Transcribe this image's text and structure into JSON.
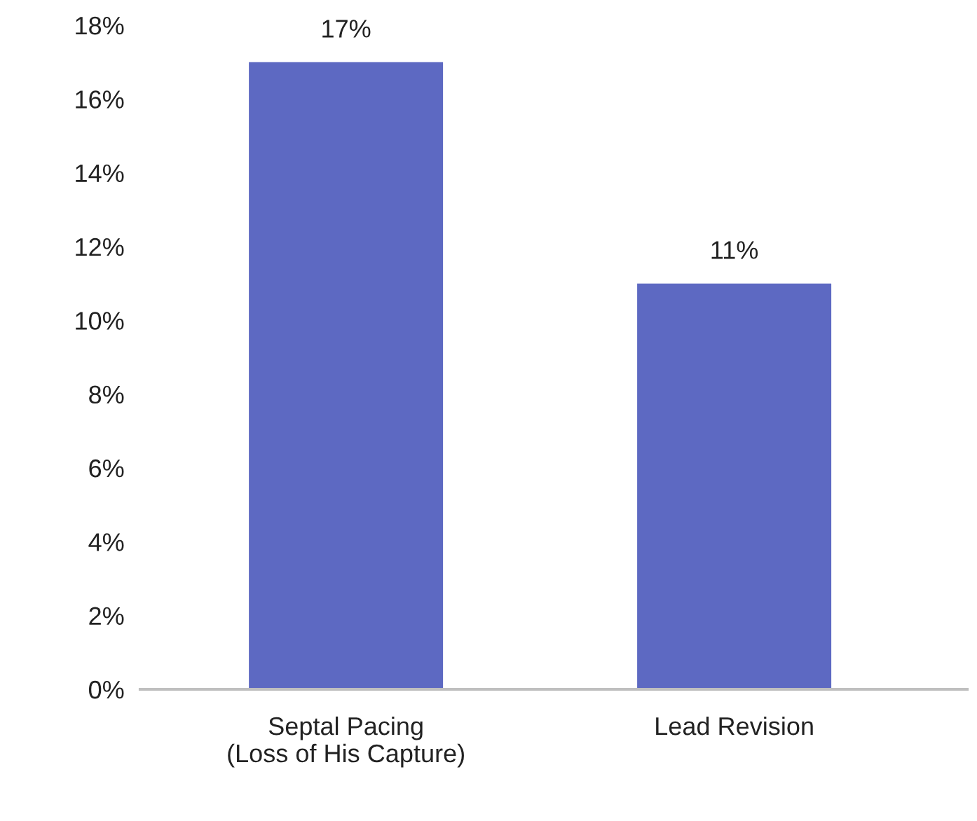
{
  "chart_data": {
    "type": "bar",
    "categories": [
      "Septal Pacing\n(Loss of His Capture)",
      "Lead Revision"
    ],
    "values": [
      17,
      11
    ],
    "value_labels": [
      "17%",
      "11%"
    ],
    "color": "#5d69c2",
    "ylim": [
      0,
      18
    ],
    "yticks": [
      {
        "value": 0,
        "label": "0%"
      },
      {
        "value": 2,
        "label": "2%"
      },
      {
        "value": 4,
        "label": "4%"
      },
      {
        "value": 6,
        "label": "6%"
      },
      {
        "value": 8,
        "label": "8%"
      },
      {
        "value": 10,
        "label": "10%"
      },
      {
        "value": 12,
        "label": "12%"
      },
      {
        "value": 14,
        "label": "14%"
      },
      {
        "value": 16,
        "label": "16%"
      },
      {
        "value": 18,
        "label": "18%"
      }
    ],
    "grid": false,
    "legend": false
  }
}
